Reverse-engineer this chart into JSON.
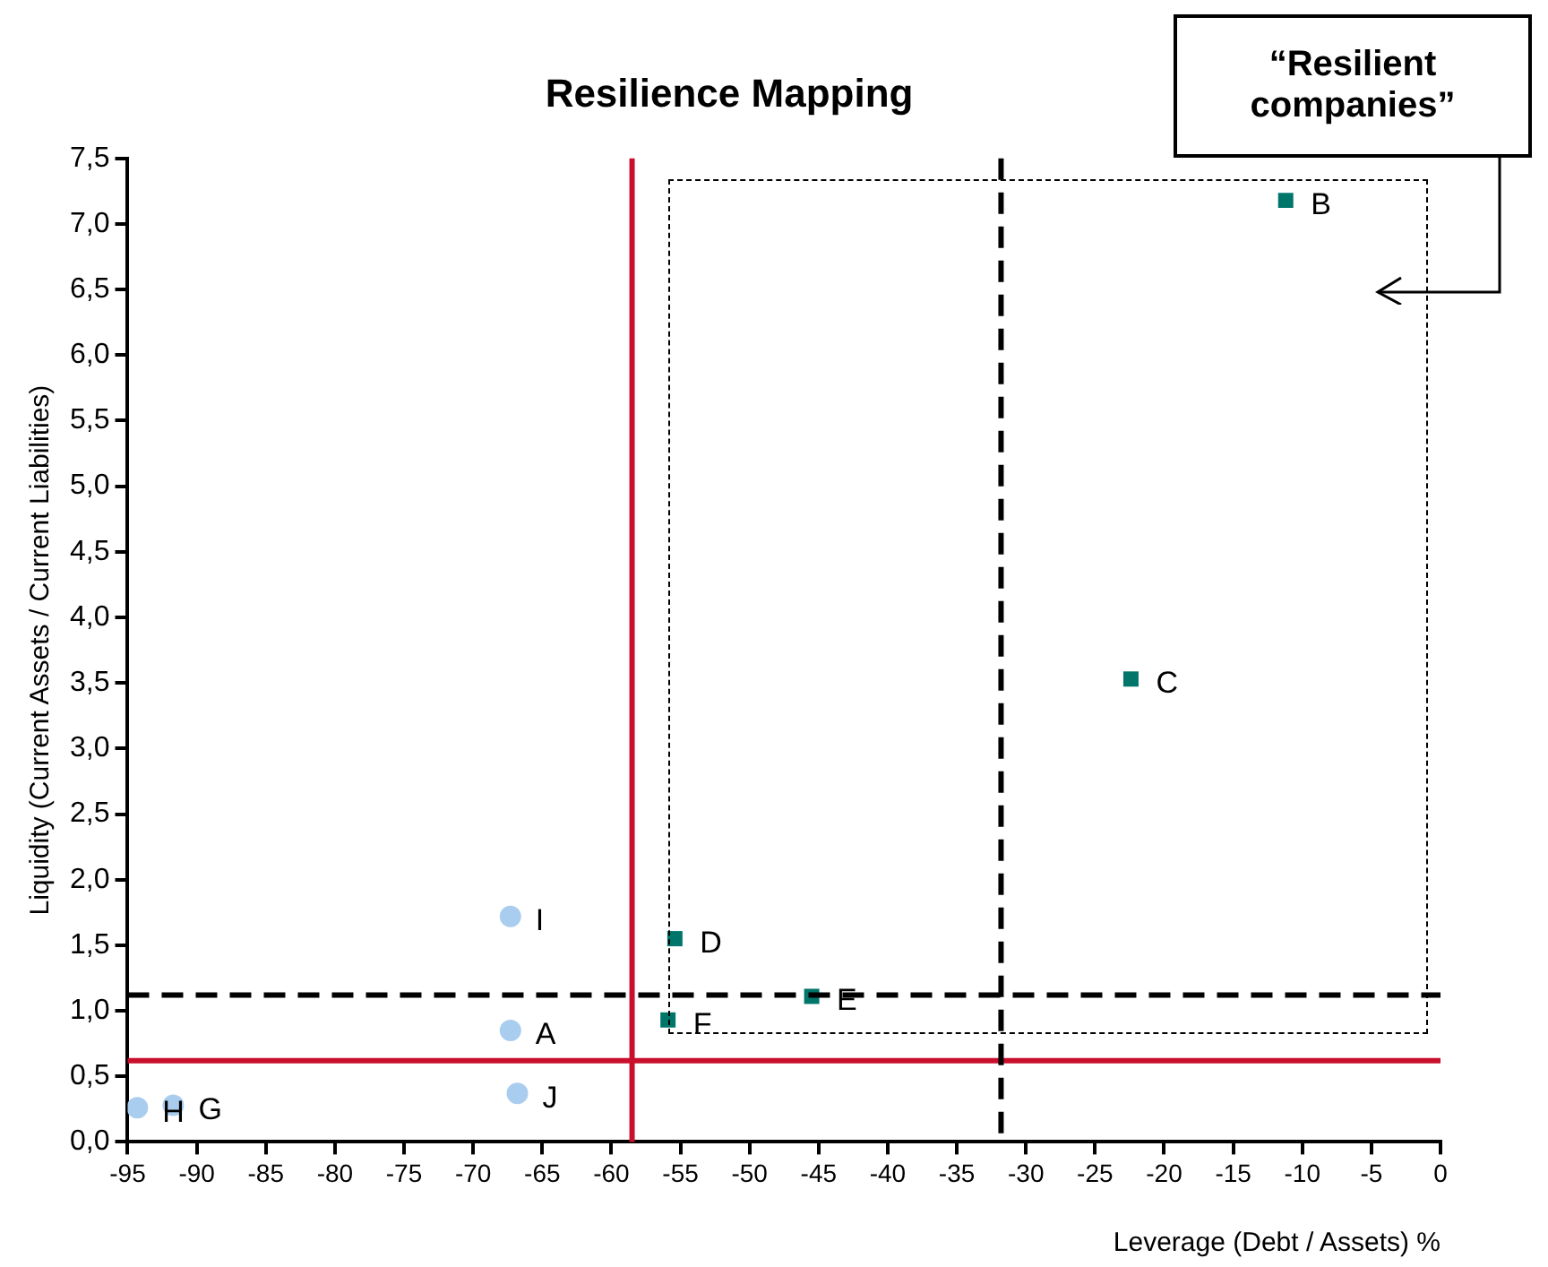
{
  "chart_data": {
    "type": "scatter",
    "title": "Resilience Mapping",
    "xlabel": "Leverage (Debt / Assets) %",
    "ylabel": "Liquidity (Current Assets / Current Liabilities)",
    "xlim": [
      -95,
      0
    ],
    "xticks": [
      -95,
      -90,
      -85,
      -80,
      -75,
      -70,
      -65,
      -60,
      -55,
      -50,
      -45,
      -40,
      -35,
      -30,
      -25,
      -20,
      -15,
      -10,
      -5,
      0
    ],
    "ylim": [
      0,
      7.5
    ],
    "yticks": [
      {
        "value": 0,
        "label": "0,0"
      },
      {
        "value": 0.5,
        "label": "0,5"
      },
      {
        "value": 1,
        "label": "1,0"
      },
      {
        "value": 1.5,
        "label": "1,5"
      },
      {
        "value": 2,
        "label": "2,0"
      },
      {
        "value": 2.5,
        "label": "2,5"
      },
      {
        "value": 3,
        "label": "3,0"
      },
      {
        "value": 3.5,
        "label": "3,5"
      },
      {
        "value": 4,
        "label": "4,0"
      },
      {
        "value": 4.5,
        "label": "4,5"
      },
      {
        "value": 5,
        "label": "5,0"
      },
      {
        "value": 5.5,
        "label": "5,5"
      },
      {
        "value": 6,
        "label": "6,0"
      },
      {
        "value": 6.5,
        "label": "6,5"
      },
      {
        "value": 7,
        "label": "7,0"
      },
      {
        "value": 7.5,
        "label": "7,5"
      }
    ],
    "grid": false,
    "legend": false,
    "series": [
      {
        "color": "#a9cdee",
        "marker": "circle",
        "x": [
          -67.3,
          -94.3,
          -91.7,
          -67.3,
          -66.8
        ],
        "values": [
          0.85,
          0.26,
          0.28,
          1.72,
          0.37
        ]
      },
      {
        "color": "#00756a",
        "marker": "square",
        "x": [
          -11.2,
          -22.4,
          -55.4,
          -45.5,
          -55.9
        ],
        "values": [
          7.18,
          3.53,
          1.55,
          1.11,
          0.93
        ]
      }
    ],
    "ref_lines": [
      {
        "axis": "x",
        "value": -58.5,
        "color": "#c8102e",
        "line_style": "solid"
      },
      {
        "axis": "y",
        "value": 0.62,
        "color": "#c8102e",
        "line_style": "solid"
      },
      {
        "axis": "x",
        "value": -31.8,
        "color": "#000000",
        "line_style": "dashed"
      },
      {
        "axis": "y",
        "value": 1.12,
        "color": "#000000",
        "line_style": "dashed"
      }
    ],
    "annotations": [
      "“Resilient companies”",
      {
        "text": "A",
        "x": -67.3,
        "y": 0.85
      },
      {
        "text": "H",
        "x": -94.3,
        "y": 0.26
      },
      {
        "text": "G",
        "x": -91.7,
        "y": 0.28
      },
      {
        "text": "I",
        "x": -67.3,
        "y": 1.72
      },
      {
        "text": "J",
        "x": -66.8,
        "y": 0.37
      },
      {
        "text": "B",
        "x": -11.2,
        "y": 7.18
      },
      {
        "text": "C",
        "x": -22.4,
        "y": 3.53
      },
      {
        "text": "D",
        "x": -55.4,
        "y": 1.55
      },
      {
        "text": "E",
        "x": -45.5,
        "y": 1.11
      },
      {
        "text": "F",
        "x": -55.9,
        "y": 0.93
      }
    ]
  }
}
